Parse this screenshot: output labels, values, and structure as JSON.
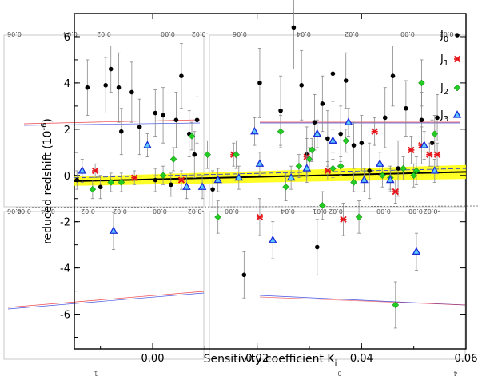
{
  "chart_data": {
    "type": "scatter",
    "title": "",
    "xlabel": "Sensitivity coefficient K",
    "xlabel_sub": "i",
    "ylabel": "reduced redshift (10",
    "ylabel_sup": "-6",
    "ylabel_end": ")",
    "xlim": [
      -0.015,
      0.06
    ],
    "ylim": [
      -7.5,
      7.0
    ],
    "xticks": [
      0.0,
      0.02,
      0.04,
      0.06
    ],
    "xtick_labels": [
      "0.00",
      "0.02",
      "0.04",
      "0.06"
    ],
    "yticks": [
      -6,
      -4,
      -2,
      0,
      2,
      4,
      6
    ],
    "ytick_labels": [
      "-6",
      "-4",
      "-2",
      "0",
      "2",
      "4",
      "6"
    ],
    "fit_line": {
      "x": [
        -0.015,
        0.06
      ],
      "y": [
        -0.25,
        0.15
      ]
    },
    "fit_band": {
      "upper": [
        -0.05,
        0.45
      ],
      "lower": [
        -0.45,
        -0.15
      ]
    },
    "legend": [
      {
        "label": "J0",
        "main": "J",
        "sub": "0",
        "marker": "circle",
        "color": "#000000"
      },
      {
        "label": "J1",
        "main": "J",
        "sub": "1",
        "marker": "star",
        "color": "#e8141a"
      },
      {
        "label": "J2",
        "main": "J",
        "sub": "2",
        "marker": "diamond",
        "color": "#22cc22"
      },
      {
        "label": "J3",
        "main": "J",
        "sub": "3",
        "marker": "triangle",
        "color": "#1a2ad8"
      }
    ],
    "series": [
      {
        "name": "J0",
        "marker": "circle",
        "color": "#000000",
        "points": [
          {
            "x": -0.0125,
            "y": 3.8,
            "err": 1.2
          },
          {
            "x": -0.009,
            "y": 3.9,
            "err": 1.2
          },
          {
            "x": -0.008,
            "y": 4.6,
            "err": 1.0
          },
          {
            "x": -0.0065,
            "y": 3.8,
            "err": 1.5
          },
          {
            "x": -0.006,
            "y": 1.9,
            "err": 1.0
          },
          {
            "x": -0.004,
            "y": 3.6,
            "err": 1.3
          },
          {
            "x": -0.0025,
            "y": 2.1,
            "err": 1.2
          },
          {
            "x": 0.0005,
            "y": 2.7,
            "err": 1.0
          },
          {
            "x": 0.002,
            "y": 2.6,
            "err": 1.2
          },
          {
            "x": 0.0045,
            "y": 2.4,
            "err": 1.2
          },
          {
            "x": 0.0055,
            "y": 4.3,
            "err": 1.4
          },
          {
            "x": 0.007,
            "y": 1.8,
            "err": 1.0
          },
          {
            "x": 0.0085,
            "y": 2.4,
            "err": 1.0
          },
          {
            "x": -0.0145,
            "y": -0.2,
            "err": 0.4
          },
          {
            "x": -0.01,
            "y": -0.5,
            "err": 0.5
          },
          {
            "x": 0.0005,
            "y": -0.2,
            "err": 0.5
          },
          {
            "x": 0.0035,
            "y": -0.4,
            "err": 0.5
          },
          {
            "x": 0.008,
            "y": 0.9,
            "err": 1.0
          },
          {
            "x": 0.0115,
            "y": -0.6,
            "err": 0.8
          },
          {
            "x": 0.0175,
            "y": -4.3,
            "err": 1.0
          },
          {
            "x": 0.0205,
            "y": 4.0,
            "err": 1.5
          },
          {
            "x": 0.0245,
            "y": 2.8,
            "err": 1.5
          },
          {
            "x": 0.027,
            "y": 6.4,
            "err": 1.8
          },
          {
            "x": 0.0285,
            "y": 3.9,
            "err": 1.5
          },
          {
            "x": 0.0295,
            "y": 0.9,
            "err": 1.2
          },
          {
            "x": 0.031,
            "y": 2.3,
            "err": 1.2
          },
          {
            "x": 0.0315,
            "y": -3.1,
            "err": 1.2
          },
          {
            "x": 0.0325,
            "y": 3.1,
            "err": 1.2
          },
          {
            "x": 0.0335,
            "y": 1.6,
            "err": 1.2
          },
          {
            "x": 0.0345,
            "y": 4.4,
            "err": 1.2
          },
          {
            "x": 0.036,
            "y": 1.8,
            "err": 1.2
          },
          {
            "x": 0.037,
            "y": 4.1,
            "err": 1.2
          },
          {
            "x": 0.0385,
            "y": 1.3,
            "err": 1.0
          },
          {
            "x": 0.04,
            "y": 1.4,
            "err": 1.2
          },
          {
            "x": 0.0415,
            "y": 0.2,
            "err": 1.2
          },
          {
            "x": 0.0445,
            "y": 2.5,
            "err": 1.3
          },
          {
            "x": 0.046,
            "y": 4.3,
            "err": 1.3
          },
          {
            "x": 0.047,
            "y": 0.3,
            "err": 1.2
          },
          {
            "x": 0.0485,
            "y": 2.9,
            "err": 1.2
          },
          {
            "x": 0.0515,
            "y": 2.4,
            "err": 1.2
          },
          {
            "x": 0.0535,
            "y": 1.4,
            "err": 1.0
          },
          {
            "x": 0.0545,
            "y": 2.5,
            "err": 1.0
          }
        ]
      },
      {
        "name": "J1",
        "marker": "star",
        "color": "#e8141a",
        "points": [
          {
            "x": -0.011,
            "y": 0.2,
            "err": 0.3
          },
          {
            "x": -0.0035,
            "y": -0.1,
            "err": 0.3
          },
          {
            "x": 0.0055,
            "y": -0.2,
            "err": 0.4
          },
          {
            "x": 0.0155,
            "y": 0.9,
            "err": 0.5
          },
          {
            "x": 0.0205,
            "y": -1.8,
            "err": 0.8
          },
          {
            "x": 0.0295,
            "y": 0.8,
            "err": 0.8
          },
          {
            "x": 0.0335,
            "y": 0.2,
            "err": 0.4
          },
          {
            "x": 0.0365,
            "y": -1.9,
            "err": 0.7
          },
          {
            "x": 0.0425,
            "y": 1.9,
            "err": 0.6
          },
          {
            "x": 0.0465,
            "y": -0.7,
            "err": 0.5
          },
          {
            "x": 0.0495,
            "y": 1.1,
            "err": 0.6
          },
          {
            "x": 0.0515,
            "y": 1.3,
            "err": 0.8
          },
          {
            "x": 0.053,
            "y": 0.9,
            "err": 0.5
          },
          {
            "x": 0.0545,
            "y": 0.9,
            "err": 0.5
          }
        ]
      },
      {
        "name": "J2",
        "marker": "diamond",
        "color": "#22cc22",
        "points": [
          {
            "x": -0.0115,
            "y": -0.6,
            "err": 0.4
          },
          {
            "x": -0.008,
            "y": -0.3,
            "err": 0.4
          },
          {
            "x": -0.006,
            "y": -0.3,
            "err": 0.4
          },
          {
            "x": 0.002,
            "y": 0.0,
            "err": 0.4
          },
          {
            "x": 0.004,
            "y": 0.7,
            "err": 0.5
          },
          {
            "x": 0.0075,
            "y": 1.7,
            "err": 0.6
          },
          {
            "x": 0.0105,
            "y": 0.9,
            "err": 0.6
          },
          {
            "x": 0.0125,
            "y": -1.8,
            "err": 0.7
          },
          {
            "x": 0.016,
            "y": 0.9,
            "err": 0.6
          },
          {
            "x": 0.0245,
            "y": 1.9,
            "err": 0.7
          },
          {
            "x": 0.0255,
            "y": -0.5,
            "err": 0.6
          },
          {
            "x": 0.028,
            "y": 0.4,
            "err": 0.5
          },
          {
            "x": 0.03,
            "y": 0.7,
            "err": 0.5
          },
          {
            "x": 0.0305,
            "y": 1.1,
            "err": 0.5
          },
          {
            "x": 0.0325,
            "y": -1.3,
            "err": 0.6
          },
          {
            "x": 0.0345,
            "y": 0.3,
            "err": 0.4
          },
          {
            "x": 0.036,
            "y": 0.4,
            "err": 0.4
          },
          {
            "x": 0.037,
            "y": 1.5,
            "err": 0.5
          },
          {
            "x": 0.0385,
            "y": -0.3,
            "err": 0.4
          },
          {
            "x": 0.0395,
            "y": -1.8,
            "err": 0.7
          },
          {
            "x": 0.044,
            "y": 0.0,
            "err": 0.5
          },
          {
            "x": 0.0455,
            "y": -0.1,
            "err": 0.5
          },
          {
            "x": 0.0465,
            "y": -5.6,
            "err": 1.0
          },
          {
            "x": 0.048,
            "y": 0.3,
            "err": 0.5
          },
          {
            "x": 0.05,
            "y": 0.0,
            "err": 0.5
          },
          {
            "x": 0.0505,
            "y": 0.2,
            "err": 0.6
          },
          {
            "x": 0.0515,
            "y": 4.0,
            "err": 1.0
          },
          {
            "x": 0.054,
            "y": 1.8,
            "err": 0.8
          }
        ]
      },
      {
        "name": "J3",
        "marker": "triangle",
        "color": "#1a2ad8",
        "points": [
          {
            "x": -0.0135,
            "y": 0.2,
            "err": 0.5
          },
          {
            "x": -0.0075,
            "y": -2.4,
            "err": 0.8
          },
          {
            "x": -0.001,
            "y": 1.3,
            "err": 0.5
          },
          {
            "x": 0.0065,
            "y": -0.5,
            "err": 0.5
          },
          {
            "x": 0.0095,
            "y": -0.5,
            "err": 0.5
          },
          {
            "x": 0.0125,
            "y": -0.2,
            "err": 0.5
          },
          {
            "x": 0.0165,
            "y": -0.1,
            "err": 0.5
          },
          {
            "x": 0.0195,
            "y": 1.9,
            "err": 0.6
          },
          {
            "x": 0.0205,
            "y": 0.5,
            "err": 0.5
          },
          {
            "x": 0.023,
            "y": -2.8,
            "err": 0.8
          },
          {
            "x": 0.0265,
            "y": -0.1,
            "err": 0.5
          },
          {
            "x": 0.0295,
            "y": 0.3,
            "err": 0.5
          },
          {
            "x": 0.0315,
            "y": 1.8,
            "err": 0.6
          },
          {
            "x": 0.0345,
            "y": 1.5,
            "err": 0.5
          },
          {
            "x": 0.0375,
            "y": 2.3,
            "err": 0.6
          },
          {
            "x": 0.0405,
            "y": -0.2,
            "err": 0.5
          },
          {
            "x": 0.0435,
            "y": 0.5,
            "err": 0.5
          },
          {
            "x": 0.0455,
            "y": -0.2,
            "err": 0.5
          },
          {
            "x": 0.0505,
            "y": -3.3,
            "err": 0.8
          },
          {
            "x": 0.052,
            "y": 1.3,
            "err": 0.6
          },
          {
            "x": 0.054,
            "y": 0.2,
            "err": 0.5
          }
        ]
      }
    ],
    "ghost_labels": [
      "0.06",
      "0.04",
      "0.02",
      "0.00",
      "-0.02",
      "0.04",
      "0.02",
      "0.00",
      "-0.02",
      "0.06",
      "0.04",
      "0.02",
      "0.00",
      "-0.02",
      "0.06",
      "0.04",
      "0.02",
      "0.00",
      "-0.02",
      "0.04",
      "0.02",
      "0.00",
      "0.01",
      "0.00",
      "1",
      "0",
      "4"
    ]
  }
}
